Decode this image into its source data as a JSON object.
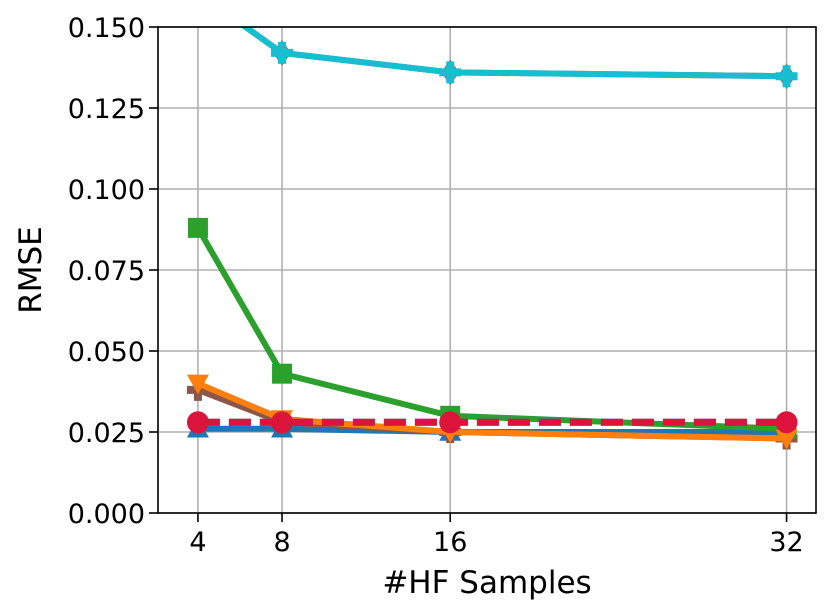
{
  "chart_data": {
    "type": "line",
    "title": "",
    "xlabel": "#HF Samples",
    "ylabel": "RMSE",
    "x": [
      4,
      8,
      16,
      32
    ],
    "x_tick_labels": [
      "4",
      "8",
      "16",
      "32"
    ],
    "y_tick_labels": [
      "0.000",
      "0.025",
      "0.050",
      "0.075",
      "0.100",
      "0.125",
      "0.150"
    ],
    "y_ticks": [
      0,
      0.025,
      0.05,
      0.075,
      0.1,
      0.125,
      0.15
    ],
    "xlim": [
      2.1,
      33.4
    ],
    "ylim": [
      0,
      0.15
    ],
    "grid": true,
    "legend": "none",
    "series": [
      {
        "values": [
          0.026,
          0.026,
          0.025,
          0.025
        ],
        "color": "#1f77b4",
        "marker": "triangle-up",
        "dash": false
      },
      {
        "values": [
          0.038,
          0.028,
          0.025,
          0.023
        ],
        "color": "#8c564b",
        "marker": "plus",
        "dash": false
      },
      {
        "values": [
          0.088,
          0.043,
          0.03,
          0.026
        ],
        "color": "#2ca02c",
        "marker": "square",
        "dash": false
      },
      {
        "values": [
          0.04,
          0.029,
          0.025,
          0.023
        ],
        "color": "#ff7f0e",
        "marker": "triangle-down",
        "dash": false
      },
      {
        "values": [
          0.1605,
          0.142,
          0.136,
          0.1348
        ],
        "color": "#7f7f7f",
        "marker": "diamond",
        "dash": false
      },
      {
        "values": [
          0.1605,
          0.142,
          0.136,
          0.1348
        ],
        "color": "#17becf",
        "marker": "plus",
        "dash": false
      },
      {
        "values": [
          0.028,
          0.028,
          0.028,
          0.028
        ],
        "color": "#1f77b4",
        "marker": "none",
        "dash": true
      },
      {
        "values": [
          0.028,
          0.028,
          0.028,
          0.028
        ],
        "color": "#dc143c",
        "marker": "circle",
        "dash": true
      }
    ]
  }
}
